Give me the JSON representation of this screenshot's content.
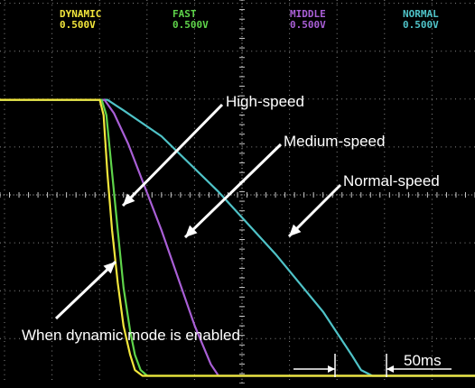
{
  "chart_data": {
    "type": "line",
    "title": "",
    "xlabel": "",
    "ylabel": "",
    "x_unit": "ms",
    "time_per_division_ms": 50,
    "xlim": [
      0,
      500
    ],
    "volts_per_division": 0.5,
    "ylim": [
      0,
      4
    ],
    "grid": true,
    "channels": [
      {
        "name": "DYNAMIC",
        "scale": "0.500V",
        "color": "#f2e63c"
      },
      {
        "name": "FAST",
        "scale": "0.500V",
        "color": "#5fd44a"
      },
      {
        "name": "MIDDLE",
        "scale": "0.500V",
        "color": "#a95fd6"
      },
      {
        "name": "NORMAL",
        "scale": "0.500V",
        "color": "#4fc3c8"
      }
    ],
    "series": [
      {
        "name": "DYNAMIC",
        "color": "#f2e63c",
        "x": [
          0,
          105,
          109,
          113,
          118,
          124,
          130,
          137,
          142,
          150,
          525
        ],
        "y": [
          2.96,
          2.96,
          2.8,
          2.2,
          1.6,
          1.05,
          0.6,
          0.3,
          0.14,
          0.08,
          0.08
        ]
      },
      {
        "name": "FAST",
        "color": "#5fd44a",
        "x": [
          0,
          107,
          112,
          118,
          124,
          130,
          137,
          142,
          148,
          155,
          525
        ],
        "y": [
          2.96,
          2.96,
          2.8,
          2.2,
          1.6,
          1.0,
          0.55,
          0.3,
          0.14,
          0.08,
          0.08
        ]
      },
      {
        "name": "MIDDLE",
        "color": "#a95fd6",
        "x": [
          0,
          110,
          120,
          135,
          170,
          205,
          222,
          230,
          240,
          525
        ],
        "y": [
          2.96,
          2.96,
          2.82,
          2.5,
          1.6,
          0.6,
          0.2,
          0.08,
          0.08,
          0.08
        ]
      },
      {
        "name": "NORMAL",
        "color": "#4fc3c8",
        "x": [
          0,
          113,
          130,
          170,
          230,
          290,
          340,
          370,
          380,
          392,
          525
        ],
        "y": [
          2.96,
          2.96,
          2.85,
          2.58,
          2.0,
          1.35,
          0.75,
          0.3,
          0.14,
          0.08,
          0.08
        ]
      }
    ],
    "annotations": [
      {
        "text": "High-speed"
      },
      {
        "text": "Medium-speed"
      },
      {
        "text": "Normal-speed"
      },
      {
        "text": "When dynamic mode is enabled"
      }
    ],
    "timebase_label": "50ms"
  }
}
